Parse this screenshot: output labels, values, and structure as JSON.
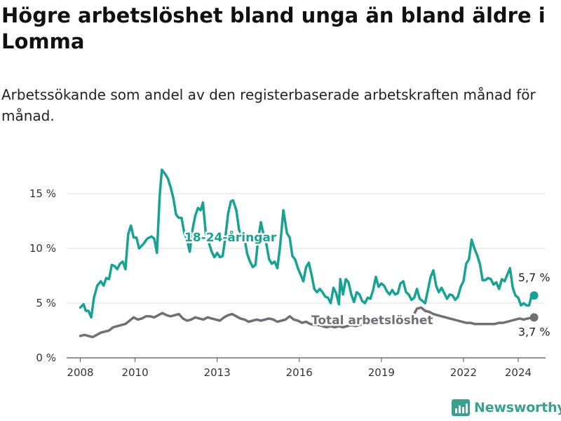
{
  "title": "Högre arbetslöshet bland unga än bland äldre i Lomma",
  "subtitle": "Arbetssökande som andel av den registerbaserade arbetskraften månad för månad.",
  "brand": {
    "name": "Newsworthy",
    "color": "#3a9f8f",
    "icon": "bar-chart-logo-icon"
  },
  "chart_data": {
    "type": "line",
    "xlim": [
      2007.5,
      2025.0
    ],
    "ylim": [
      0,
      17
    ],
    "x_ticks": [
      2008,
      2010,
      2013,
      2016,
      2019,
      2022,
      2024
    ],
    "y_ticks": [
      {
        "value": 0,
        "label": "0 %"
      },
      {
        "value": 5,
        "label": "5 %"
      },
      {
        "value": 10,
        "label": "10 %"
      },
      {
        "value": 15,
        "label": "15 %"
      }
    ],
    "grid": "horizontal",
    "series": [
      {
        "name": "18-24-åringar",
        "color": "#17a294",
        "last_label": "5,7 %",
        "points": [
          [
            2008.0,
            4.6
          ],
          [
            2008.12,
            4.9
          ],
          [
            2008.2,
            4.3
          ],
          [
            2008.3,
            4.3
          ],
          [
            2008.4,
            3.7
          ],
          [
            2008.5,
            5.5
          ],
          [
            2008.62,
            6.6
          ],
          [
            2008.75,
            7.0
          ],
          [
            2008.85,
            6.6
          ],
          [
            2008.95,
            7.3
          ],
          [
            2009.05,
            7.2
          ],
          [
            2009.15,
            8.5
          ],
          [
            2009.25,
            8.4
          ],
          [
            2009.35,
            8.1
          ],
          [
            2009.45,
            8.6
          ],
          [
            2009.55,
            8.8
          ],
          [
            2009.65,
            8.1
          ],
          [
            2009.75,
            11.3
          ],
          [
            2009.85,
            12.1
          ],
          [
            2009.95,
            11.0
          ],
          [
            2010.05,
            11.0
          ],
          [
            2010.15,
            10.0
          ],
          [
            2010.3,
            10.4
          ],
          [
            2010.45,
            10.9
          ],
          [
            2010.6,
            11.1
          ],
          [
            2010.7,
            10.9
          ],
          [
            2010.8,
            9.6
          ],
          [
            2010.9,
            14.8
          ],
          [
            2010.98,
            17.2
          ],
          [
            2011.1,
            16.8
          ],
          [
            2011.2,
            16.4
          ],
          [
            2011.3,
            15.6
          ],
          [
            2011.4,
            14.6
          ],
          [
            2011.5,
            13.1
          ],
          [
            2011.6,
            12.8
          ],
          [
            2011.7,
            12.8
          ],
          [
            2011.8,
            11.4
          ],
          [
            2011.9,
            10.8
          ],
          [
            2012.0,
            9.7
          ],
          [
            2012.1,
            11.7
          ],
          [
            2012.2,
            13.0
          ],
          [
            2012.3,
            13.7
          ],
          [
            2012.4,
            13.5
          ],
          [
            2012.48,
            14.2
          ],
          [
            2012.6,
            11.0
          ],
          [
            2012.7,
            10.5
          ],
          [
            2012.8,
            9.7
          ],
          [
            2012.9,
            9.2
          ],
          [
            2013.0,
            9.6
          ],
          [
            2013.1,
            9.2
          ],
          [
            2013.2,
            9.3
          ],
          [
            2013.3,
            11.0
          ],
          [
            2013.4,
            13.2
          ],
          [
            2013.5,
            14.3
          ],
          [
            2013.58,
            14.4
          ],
          [
            2013.7,
            13.5
          ],
          [
            2013.8,
            11.7
          ],
          [
            2013.9,
            11.2
          ],
          [
            2014.0,
            10.9
          ],
          [
            2014.1,
            9.5
          ],
          [
            2014.2,
            8.8
          ],
          [
            2014.3,
            8.3
          ],
          [
            2014.4,
            8.5
          ],
          [
            2014.5,
            10.9
          ],
          [
            2014.6,
            12.4
          ],
          [
            2014.7,
            11.2
          ],
          [
            2014.8,
            10.4
          ],
          [
            2014.9,
            9.0
          ],
          [
            2015.0,
            8.6
          ],
          [
            2015.1,
            8.8
          ],
          [
            2015.2,
            8.2
          ],
          [
            2015.3,
            10.2
          ],
          [
            2015.42,
            13.5
          ],
          [
            2015.55,
            11.4
          ],
          [
            2015.65,
            11.0
          ],
          [
            2015.75,
            9.3
          ],
          [
            2015.85,
            9.0
          ],
          [
            2015.95,
            8.2
          ],
          [
            2016.05,
            7.6
          ],
          [
            2016.15,
            7.0
          ],
          [
            2016.25,
            8.3
          ],
          [
            2016.35,
            8.7
          ],
          [
            2016.45,
            7.6
          ],
          [
            2016.55,
            6.3
          ],
          [
            2016.65,
            6.0
          ],
          [
            2016.75,
            6.3
          ],
          [
            2016.85,
            6.0
          ],
          [
            2016.95,
            5.6
          ],
          [
            2017.05,
            5.5
          ],
          [
            2017.15,
            5.0
          ],
          [
            2017.25,
            6.4
          ],
          [
            2017.35,
            5.9
          ],
          [
            2017.45,
            4.9
          ],
          [
            2017.5,
            7.2
          ],
          [
            2017.6,
            5.8
          ],
          [
            2017.7,
            7.2
          ],
          [
            2017.8,
            6.9
          ],
          [
            2017.9,
            5.8
          ],
          [
            2018.0,
            5.1
          ],
          [
            2018.1,
            6.0
          ],
          [
            2018.2,
            5.8
          ],
          [
            2018.3,
            5.2
          ],
          [
            2018.4,
            5.0
          ],
          [
            2018.5,
            5.5
          ],
          [
            2018.6,
            5.4
          ],
          [
            2018.7,
            6.2
          ],
          [
            2018.8,
            7.4
          ],
          [
            2018.9,
            6.5
          ],
          [
            2019.0,
            6.8
          ],
          [
            2019.1,
            6.6
          ],
          [
            2019.2,
            6.1
          ],
          [
            2019.3,
            5.8
          ],
          [
            2019.4,
            6.2
          ],
          [
            2019.5,
            5.8
          ],
          [
            2019.6,
            5.9
          ],
          [
            2019.7,
            6.8
          ],
          [
            2019.8,
            7.0
          ],
          [
            2019.9,
            6.0
          ],
          [
            2020.0,
            5.8
          ],
          [
            2020.1,
            5.3
          ],
          [
            2020.2,
            5.5
          ],
          [
            2020.3,
            6.3
          ],
          [
            2020.4,
            5.4
          ],
          [
            2020.5,
            5.2
          ],
          [
            2020.6,
            5.0
          ],
          [
            2020.7,
            6.2
          ],
          [
            2020.8,
            7.4
          ],
          [
            2020.9,
            8.0
          ],
          [
            2021.0,
            6.6
          ],
          [
            2021.1,
            6.0
          ],
          [
            2021.2,
            6.4
          ],
          [
            2021.3,
            5.9
          ],
          [
            2021.4,
            5.4
          ],
          [
            2021.5,
            5.8
          ],
          [
            2021.6,
            5.7
          ],
          [
            2021.7,
            5.3
          ],
          [
            2021.8,
            5.6
          ],
          [
            2021.9,
            6.5
          ],
          [
            2022.0,
            7.0
          ],
          [
            2022.1,
            8.6
          ],
          [
            2022.2,
            9.0
          ],
          [
            2022.3,
            10.8
          ],
          [
            2022.4,
            10.0
          ],
          [
            2022.5,
            9.4
          ],
          [
            2022.6,
            8.6
          ],
          [
            2022.7,
            7.1
          ],
          [
            2022.8,
            7.1
          ],
          [
            2022.9,
            7.3
          ],
          [
            2023.0,
            7.2
          ],
          [
            2023.1,
            6.7
          ],
          [
            2023.2,
            6.9
          ],
          [
            2023.3,
            6.3
          ],
          [
            2023.4,
            7.2
          ],
          [
            2023.5,
            7.0
          ],
          [
            2023.6,
            7.6
          ],
          [
            2023.7,
            8.2
          ],
          [
            2023.8,
            6.4
          ],
          [
            2023.9,
            5.7
          ],
          [
            2024.0,
            5.5
          ],
          [
            2024.1,
            4.8
          ],
          [
            2024.2,
            5.0
          ],
          [
            2024.3,
            4.8
          ],
          [
            2024.4,
            4.8
          ],
          [
            2024.5,
            5.8
          ],
          [
            2024.58,
            5.7
          ]
        ]
      },
      {
        "name": "Total arbetslöshet",
        "color": "#6f6f76",
        "last_label": "3,7 %",
        "points": [
          [
            2008.0,
            2.0
          ],
          [
            2008.15,
            2.1
          ],
          [
            2008.3,
            2.0
          ],
          [
            2008.45,
            1.9
          ],
          [
            2008.6,
            2.1
          ],
          [
            2008.75,
            2.3
          ],
          [
            2008.9,
            2.4
          ],
          [
            2009.05,
            2.5
          ],
          [
            2009.2,
            2.8
          ],
          [
            2009.35,
            2.9
          ],
          [
            2009.5,
            3.0
          ],
          [
            2009.65,
            3.1
          ],
          [
            2009.8,
            3.4
          ],
          [
            2009.95,
            3.7
          ],
          [
            2010.1,
            3.5
          ],
          [
            2010.25,
            3.6
          ],
          [
            2010.4,
            3.8
          ],
          [
            2010.55,
            3.8
          ],
          [
            2010.7,
            3.7
          ],
          [
            2010.85,
            3.9
          ],
          [
            2011.0,
            4.1
          ],
          [
            2011.15,
            3.9
          ],
          [
            2011.3,
            3.8
          ],
          [
            2011.45,
            3.9
          ],
          [
            2011.6,
            4.0
          ],
          [
            2011.75,
            3.6
          ],
          [
            2011.9,
            3.4
          ],
          [
            2012.05,
            3.5
          ],
          [
            2012.2,
            3.7
          ],
          [
            2012.35,
            3.6
          ],
          [
            2012.5,
            3.5
          ],
          [
            2012.65,
            3.7
          ],
          [
            2012.8,
            3.6
          ],
          [
            2012.95,
            3.5
          ],
          [
            2013.1,
            3.4
          ],
          [
            2013.25,
            3.7
          ],
          [
            2013.4,
            3.9
          ],
          [
            2013.55,
            4.0
          ],
          [
            2013.7,
            3.8
          ],
          [
            2013.85,
            3.6
          ],
          [
            2014.0,
            3.5
          ],
          [
            2014.15,
            3.3
          ],
          [
            2014.3,
            3.4
          ],
          [
            2014.45,
            3.5
          ],
          [
            2014.6,
            3.4
          ],
          [
            2014.75,
            3.5
          ],
          [
            2014.9,
            3.6
          ],
          [
            2015.05,
            3.5
          ],
          [
            2015.2,
            3.3
          ],
          [
            2015.35,
            3.4
          ],
          [
            2015.5,
            3.5
          ],
          [
            2015.65,
            3.8
          ],
          [
            2015.8,
            3.5
          ],
          [
            2015.95,
            3.4
          ],
          [
            2016.1,
            3.2
          ],
          [
            2016.25,
            3.3
          ],
          [
            2016.4,
            3.1
          ],
          [
            2016.55,
            3.0
          ],
          [
            2016.7,
            3.0
          ],
          [
            2016.85,
            2.9
          ],
          [
            2017.0,
            2.8
          ],
          [
            2017.15,
            2.9
          ],
          [
            2017.3,
            2.8
          ],
          [
            2017.45,
            2.9
          ],
          [
            2017.6,
            2.8
          ],
          [
            2017.75,
            2.9
          ],
          [
            2017.9,
            3.0
          ],
          [
            2018.05,
            2.9
          ],
          [
            2018.2,
            3.0
          ],
          [
            2018.35,
            3.1
          ],
          [
            2018.5,
            3.2
          ],
          [
            2018.65,
            3.1
          ],
          [
            2018.8,
            3.2
          ],
          [
            2018.95,
            3.3
          ],
          [
            2019.1,
            3.2
          ],
          [
            2019.25,
            3.3
          ],
          [
            2019.4,
            3.4
          ],
          [
            2019.55,
            3.5
          ],
          [
            2019.7,
            3.4
          ],
          [
            2019.85,
            3.6
          ],
          [
            2020.0,
            3.7
          ],
          [
            2020.15,
            3.8
          ],
          [
            2020.3,
            4.5
          ],
          [
            2020.45,
            4.6
          ],
          [
            2020.6,
            4.3
          ],
          [
            2020.75,
            4.2
          ],
          [
            2020.9,
            4.0
          ],
          [
            2021.05,
            3.9
          ],
          [
            2021.2,
            3.8
          ],
          [
            2021.35,
            3.7
          ],
          [
            2021.5,
            3.6
          ],
          [
            2021.65,
            3.5
          ],
          [
            2021.8,
            3.4
          ],
          [
            2021.95,
            3.3
          ],
          [
            2022.1,
            3.2
          ],
          [
            2022.25,
            3.2
          ],
          [
            2022.4,
            3.1
          ],
          [
            2022.55,
            3.1
          ],
          [
            2022.7,
            3.1
          ],
          [
            2022.85,
            3.1
          ],
          [
            2023.0,
            3.1
          ],
          [
            2023.15,
            3.1
          ],
          [
            2023.3,
            3.2
          ],
          [
            2023.45,
            3.2
          ],
          [
            2023.6,
            3.3
          ],
          [
            2023.75,
            3.4
          ],
          [
            2023.9,
            3.5
          ],
          [
            2024.05,
            3.6
          ],
          [
            2024.2,
            3.5
          ],
          [
            2024.35,
            3.6
          ],
          [
            2024.58,
            3.7
          ]
        ]
      }
    ],
    "annotations": [
      "18-24-åringar",
      "Total arbetslöshet"
    ]
  }
}
